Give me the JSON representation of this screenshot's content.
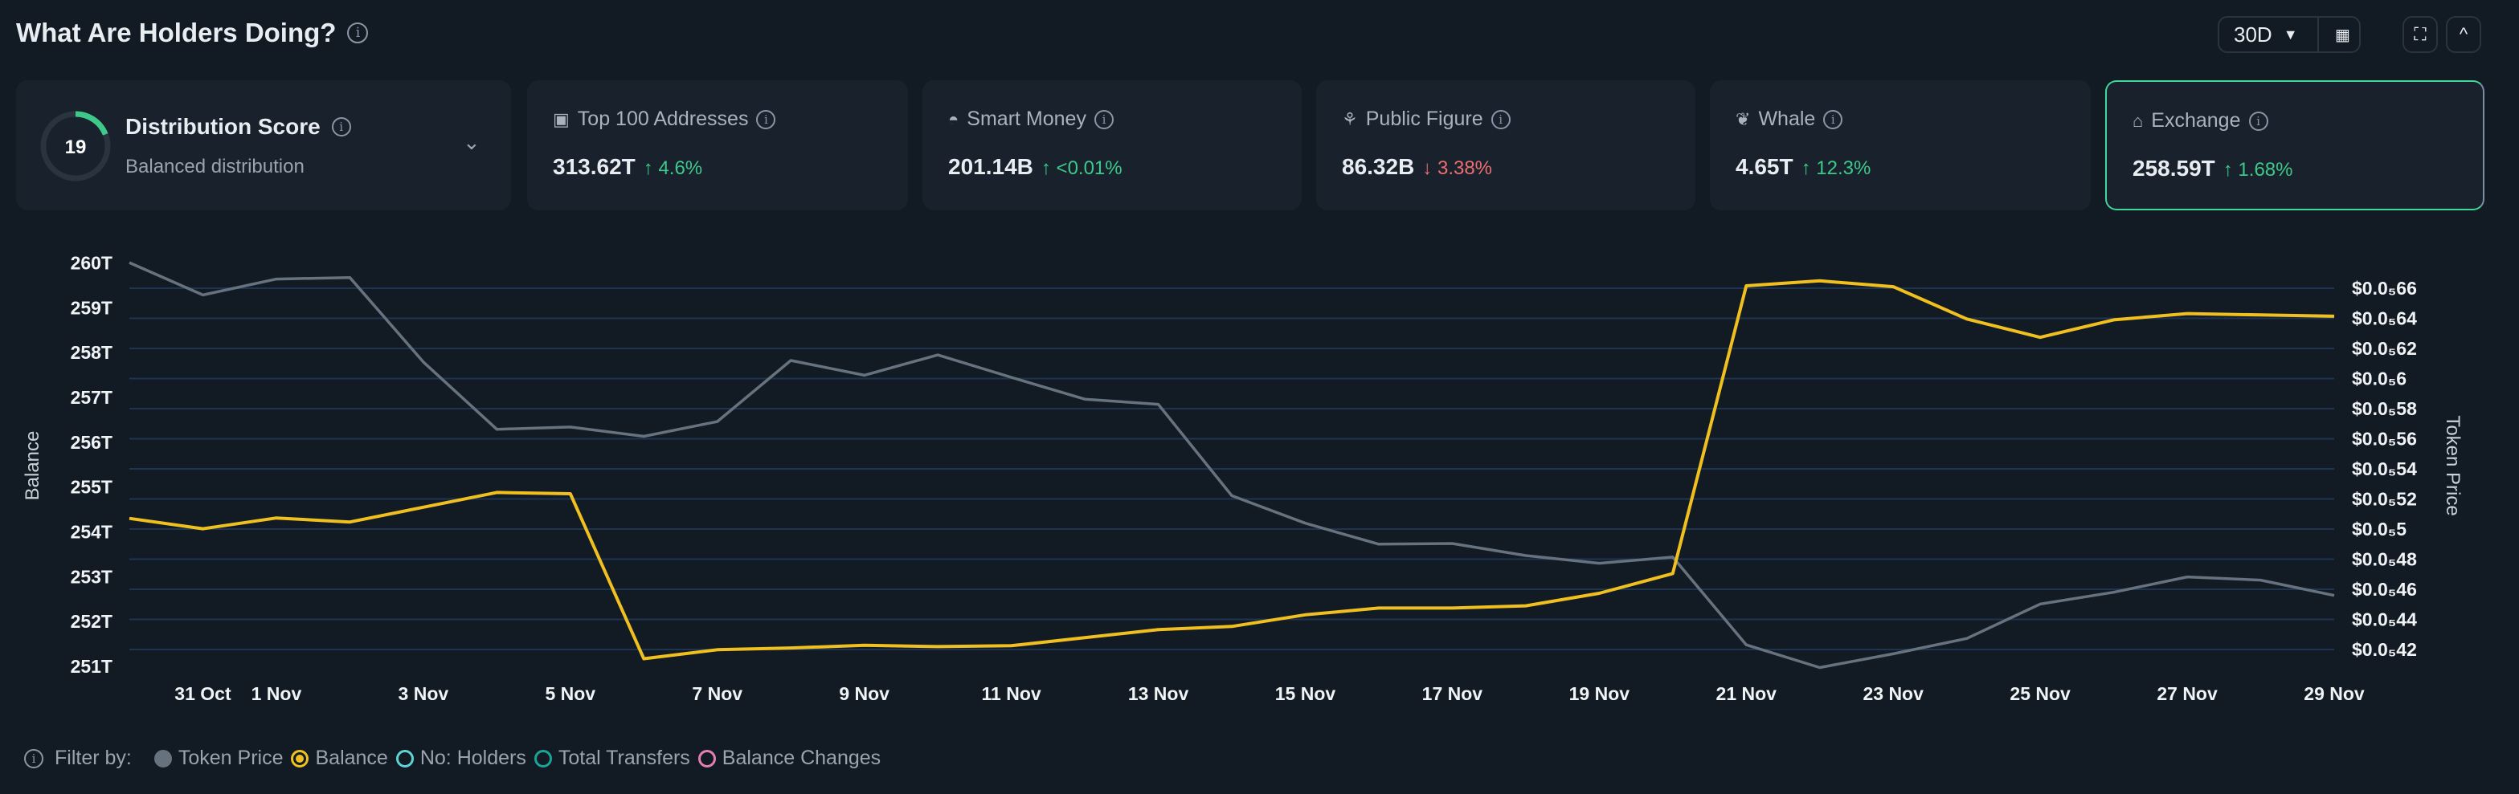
{
  "header": {
    "title": "What Are Holders Doing?",
    "range": "30D"
  },
  "distribution": {
    "score": "19",
    "score_fraction": 0.19,
    "title": "Distribution Score",
    "subtitle": "Balanced distribution"
  },
  "cards": [
    {
      "icon": "wallet-icon",
      "title": "Top 100 Addresses",
      "value": "313.62T",
      "change": "4.6%",
      "dir": "up"
    },
    {
      "icon": "mask-icon",
      "title": "Smart Money",
      "value": "201.14B",
      "change": "<0.01%",
      "dir": "up"
    },
    {
      "icon": "person-icon",
      "title": "Public Figure",
      "value": "86.32B",
      "change": "3.38%",
      "dir": "down"
    },
    {
      "icon": "whale-icon",
      "title": "Whale",
      "value": "4.65T",
      "change": "12.3%",
      "dir": "up"
    },
    {
      "icon": "bank-icon",
      "title": "Exchange",
      "value": "258.59T",
      "change": "1.68%",
      "dir": "up",
      "selected": true
    }
  ],
  "legend": {
    "label": "Filter by:",
    "items": [
      {
        "label": "Token Price",
        "color": "#66737f",
        "state": "filled"
      },
      {
        "label": "Balance",
        "color": "#f0c020",
        "state": "selected"
      },
      {
        "label": "No: Holders",
        "color": "#5fd3d3",
        "state": "off"
      },
      {
        "label": "Total Transfers",
        "color": "#1aa39a",
        "state": "off"
      },
      {
        "label": "Balance Changes",
        "color": "#e27fb5",
        "state": "off"
      }
    ]
  },
  "chart_data": {
    "type": "line",
    "ylabel": "Balance",
    "y2label": "Token Price",
    "x": [
      "30 Oct",
      "31 Oct",
      "1 Nov",
      "2 Nov",
      "3 Nov",
      "4 Nov",
      "5 Nov",
      "6 Nov",
      "7 Nov",
      "8 Nov",
      "9 Nov",
      "10 Nov",
      "11 Nov",
      "12 Nov",
      "13 Nov",
      "14 Nov",
      "15 Nov",
      "16 Nov",
      "17 Nov",
      "18 Nov",
      "19 Nov",
      "20 Nov",
      "21 Nov",
      "22 Nov",
      "23 Nov",
      "24 Nov",
      "25 Nov",
      "26 Nov",
      "27 Nov",
      "28 Nov",
      "29 Nov"
    ],
    "xticks": [
      "31 Oct",
      "1 Nov",
      "3 Nov",
      "5 Nov",
      "7 Nov",
      "9 Nov",
      "11 Nov",
      "13 Nov",
      "15 Nov",
      "17 Nov",
      "19 Nov",
      "21 Nov",
      "23 Nov",
      "25 Nov",
      "27 Nov",
      "29 Nov"
    ],
    "yticks": [
      "260T",
      "259T",
      "258T",
      "257T",
      "256T",
      "255T",
      "254T",
      "253T",
      "252T",
      "251T"
    ],
    "ylim": [
      251,
      260
    ],
    "y2ticks": [
      "$0.0₅66",
      "$0.0₅64",
      "$0.0₅62",
      "$0.0₅6",
      "$0.0₅58",
      "$0.0₅56",
      "$0.0₅54",
      "$0.0₅52",
      "$0.0₅5",
      "$0.0₅48",
      "$0.0₅46",
      "$0.0₅44",
      "$0.0₅42"
    ],
    "y2lim": [
      4.2e-06,
      6.6e-06
    ],
    "grid": true,
    "series": [
      {
        "name": "Balance",
        "axis": "left",
        "unit": "T",
        "color": "#f0c020",
        "values": [
          254.3,
          254.07,
          254.31,
          254.22,
          254.55,
          254.88,
          254.85,
          251.17,
          251.37,
          251.41,
          251.47,
          251.44,
          251.46,
          251.64,
          251.82,
          251.89,
          252.15,
          252.3,
          252.3,
          252.35,
          252.63,
          253.07,
          259.49,
          259.6,
          259.47,
          258.75,
          258.34,
          258.73,
          258.87,
          258.84,
          258.81
        ]
      },
      {
        "name": "Token Price",
        "axis": "right",
        "color": "#66737f",
        "values": [
          6.77e-06,
          6.555e-06,
          6.661e-06,
          6.671e-06,
          6.11e-06,
          5.663e-06,
          5.678e-06,
          5.616e-06,
          5.714e-06,
          6.12e-06,
          6.022e-06,
          6.157e-06,
          6.008e-06,
          5.863e-06,
          5.829e-06,
          5.222e-06,
          5.039e-06,
          4.9e-06,
          4.904e-06,
          4.824e-06,
          4.773e-06,
          4.814e-06,
          4.231e-06,
          4.08e-06,
          4.171e-06,
          4.273e-06,
          4.502e-06,
          4.58e-06,
          4.682e-06,
          4.661e-06,
          4.559e-06
        ]
      }
    ]
  }
}
